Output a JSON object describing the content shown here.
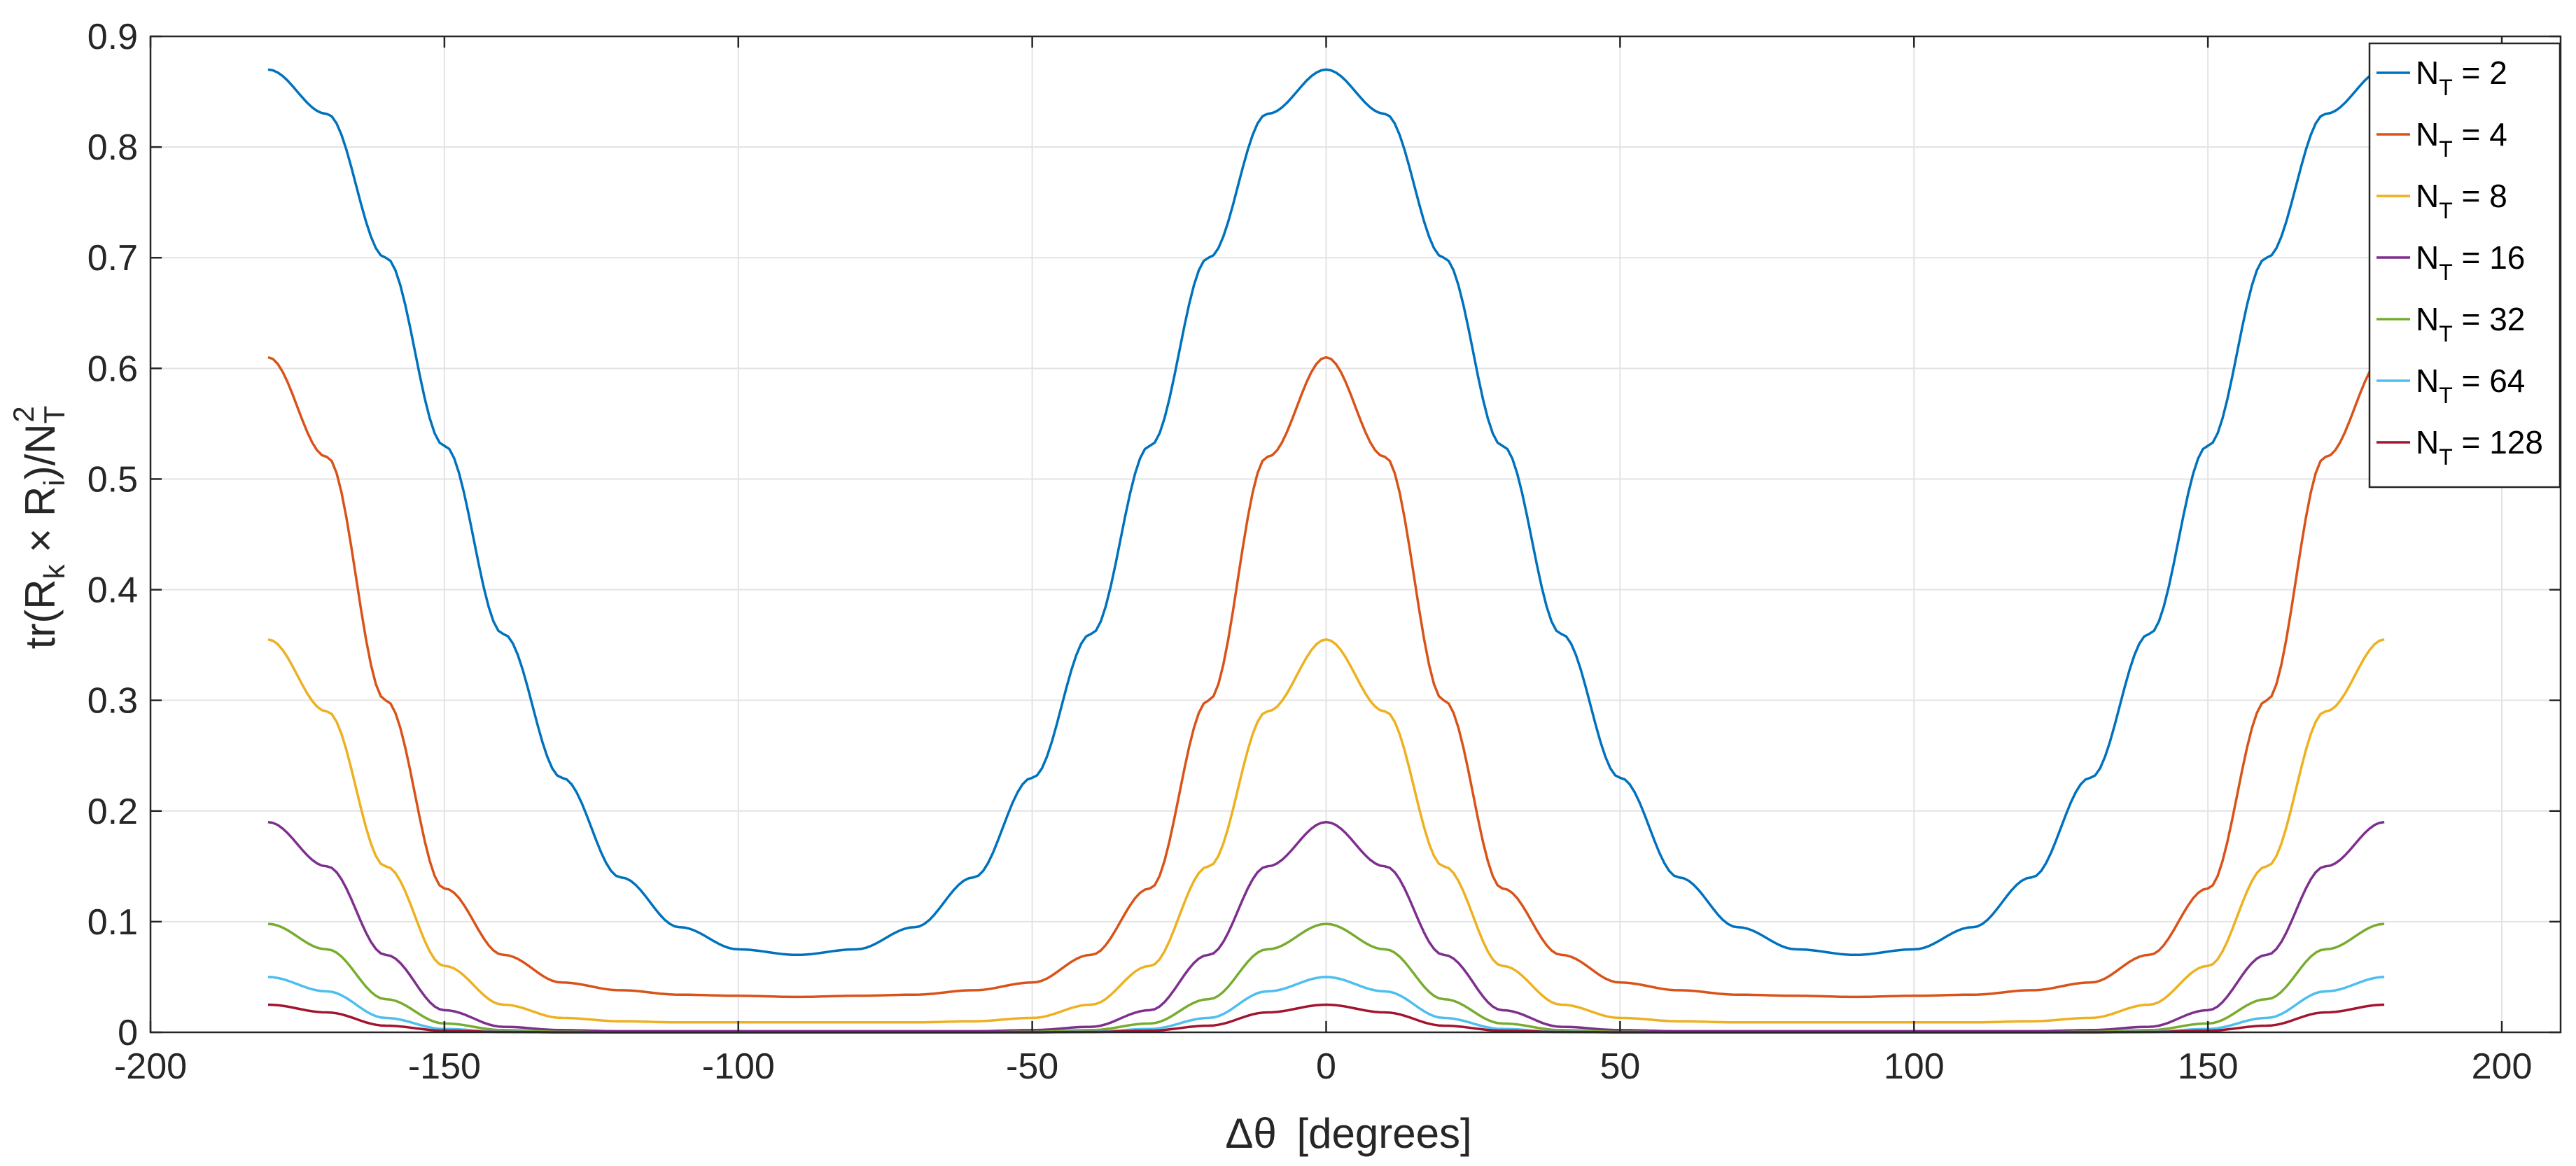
{
  "chart_data": {
    "type": "line",
    "title": "",
    "xlabel_symbol": "Δθ",
    "xlabel_unit": "[degrees]",
    "ylabel": {
      "prefix": "tr(R",
      "sub1": "k",
      "mid": " × R",
      "sub2": "i",
      "post": ")/N",
      "sub3": "T",
      "sup3": "2"
    },
    "xlim": [
      -200,
      210
    ],
    "ylim": [
      0,
      0.9
    ],
    "xticks": [
      -200,
      -150,
      -100,
      -50,
      0,
      50,
      100,
      150,
      200
    ],
    "xtick_labels": [
      "-200",
      "-150",
      "-100",
      "-50",
      "0",
      "50",
      "100",
      "150",
      "200"
    ],
    "yticks": [
      0,
      0.1,
      0.2,
      0.3,
      0.4,
      0.5,
      0.6,
      0.7,
      0.8,
      0.9
    ],
    "ytick_labels": [
      "0",
      "0.1",
      "0.2",
      "0.3",
      "0.4",
      "0.5",
      "0.6",
      "0.7",
      "0.8",
      "0.9"
    ],
    "grid": true,
    "legend_position": "top-right",
    "x": [
      -180,
      -170,
      -160,
      -150,
      -140,
      -130,
      -120,
      -110,
      -100,
      -90,
      -80,
      -70,
      -60,
      -50,
      -40,
      -30,
      -20,
      -10,
      0,
      10,
      20,
      30,
      40,
      50,
      60,
      70,
      80,
      90,
      100,
      110,
      120,
      130,
      140,
      150,
      160,
      170,
      180
    ],
    "series": [
      {
        "name": "N",
        "sub": "T",
        "suffix": " = 2",
        "color": "#0072BD",
        "values": [
          0.87,
          0.83,
          0.7,
          0.53,
          0.36,
          0.23,
          0.14,
          0.095,
          0.075,
          0.07,
          0.075,
          0.095,
          0.14,
          0.23,
          0.36,
          0.53,
          0.7,
          0.83,
          0.87,
          0.83,
          0.7,
          0.53,
          0.36,
          0.23,
          0.14,
          0.095,
          0.075,
          0.07,
          0.075,
          0.095,
          0.14,
          0.23,
          0.36,
          0.53,
          0.7,
          0.83,
          0.87
        ]
      },
      {
        "name": "N",
        "sub": "T",
        "suffix": " = 4",
        "color": "#D95319",
        "values": [
          0.61,
          0.52,
          0.3,
          0.13,
          0.07,
          0.045,
          0.038,
          0.034,
          0.033,
          0.032,
          0.033,
          0.034,
          0.038,
          0.045,
          0.07,
          0.13,
          0.3,
          0.52,
          0.61,
          0.52,
          0.3,
          0.13,
          0.07,
          0.045,
          0.038,
          0.034,
          0.033,
          0.032,
          0.033,
          0.034,
          0.038,
          0.045,
          0.07,
          0.13,
          0.3,
          0.52,
          0.61
        ]
      },
      {
        "name": "N",
        "sub": "T",
        "suffix": " = 8",
        "color": "#EDB120",
        "values": [
          0.355,
          0.29,
          0.15,
          0.06,
          0.025,
          0.013,
          0.01,
          0.009,
          0.009,
          0.009,
          0.009,
          0.009,
          0.01,
          0.013,
          0.025,
          0.06,
          0.15,
          0.29,
          0.355,
          0.29,
          0.15,
          0.06,
          0.025,
          0.013,
          0.01,
          0.009,
          0.009,
          0.009,
          0.009,
          0.009,
          0.01,
          0.013,
          0.025,
          0.06,
          0.15,
          0.29,
          0.355
        ]
      },
      {
        "name": "N",
        "sub": "T",
        "suffix": " = 16",
        "color": "#7E2F8E",
        "values": [
          0.19,
          0.15,
          0.07,
          0.02,
          0.005,
          0.002,
          0.001,
          0.001,
          0.001,
          0.001,
          0.001,
          0.001,
          0.001,
          0.002,
          0.005,
          0.02,
          0.07,
          0.15,
          0.19,
          0.15,
          0.07,
          0.02,
          0.005,
          0.002,
          0.001,
          0.001,
          0.001,
          0.001,
          0.001,
          0.001,
          0.001,
          0.002,
          0.005,
          0.02,
          0.07,
          0.15,
          0.19
        ]
      },
      {
        "name": "N",
        "sub": "T",
        "suffix": " = 32",
        "color": "#77AC30",
        "values": [
          0.098,
          0.075,
          0.03,
          0.008,
          0.002,
          0.0005,
          0,
          0,
          0,
          0,
          0,
          0,
          0,
          0.0005,
          0.002,
          0.008,
          0.03,
          0.075,
          0.098,
          0.075,
          0.03,
          0.008,
          0.002,
          0.0005,
          0,
          0,
          0,
          0,
          0,
          0,
          0,
          0.0005,
          0.002,
          0.008,
          0.03,
          0.075,
          0.098
        ]
      },
      {
        "name": "N",
        "sub": "T",
        "suffix": " = 64",
        "color": "#4DBEEE",
        "values": [
          0.05,
          0.037,
          0.013,
          0.003,
          0.0005,
          0,
          0,
          0,
          0,
          0,
          0,
          0,
          0,
          0,
          0.0005,
          0.003,
          0.013,
          0.037,
          0.05,
          0.037,
          0.013,
          0.003,
          0.0005,
          0,
          0,
          0,
          0,
          0,
          0,
          0,
          0,
          0,
          0.0005,
          0.003,
          0.013,
          0.037,
          0.05
        ]
      },
      {
        "name": "N",
        "sub": "T",
        "suffix": " = 128",
        "color": "#A2142F",
        "values": [
          0.025,
          0.018,
          0.006,
          0.0015,
          0.0003,
          0,
          0,
          0,
          0,
          0,
          0,
          0,
          0,
          0,
          0.0003,
          0.0015,
          0.006,
          0.018,
          0.025,
          0.018,
          0.006,
          0.0015,
          0.0003,
          0,
          0,
          0,
          0,
          0,
          0,
          0,
          0,
          0,
          0.0003,
          0.0015,
          0.006,
          0.018,
          0.025
        ]
      }
    ]
  }
}
